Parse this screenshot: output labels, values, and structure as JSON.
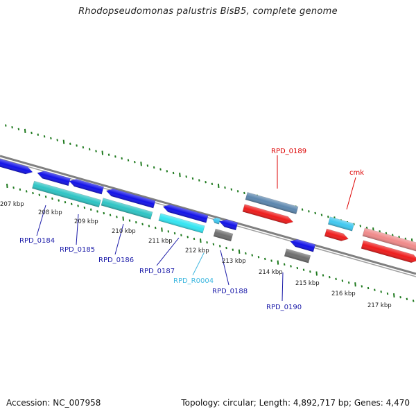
{
  "title": "Rhodopseudomonas palustris BisB5, complete genome",
  "footer": {
    "accession": "Accession: NC_007958",
    "topology": "Topology: circular; Length: 4,892,717 bp; Genes: 4,470"
  },
  "colors": {
    "backbone": "#808080",
    "tick": "#1f7a1f",
    "protein_blue": "#1212e8",
    "teal": "#2ec4c4",
    "cyan": "#33e5f2",
    "steel": "#5b86ae",
    "red": "#ee1c1c",
    "pink": "#f08a8a",
    "gray_gene": "#6e6e6e",
    "light_blue": "#3fc8f0"
  },
  "scale_labels": [
    "207 kbp",
    "208 kbp",
    "209 kbp",
    "210 kbp",
    "211 kbp",
    "212 kbp",
    "213 kbp",
    "214 kbp",
    "215 kbp",
    "216 kbp",
    "217 kbp"
  ],
  "gene_labels": [
    {
      "text": "RPD_0184",
      "color": "#1a1aa8"
    },
    {
      "text": "RPD_0185",
      "color": "#1a1aa8"
    },
    {
      "text": "RPD_0186",
      "color": "#1a1aa8"
    },
    {
      "text": "RPD_0187",
      "color": "#1a1aa8"
    },
    {
      "text": "RPD_R0004",
      "color": "#3fb8e0"
    },
    {
      "text": "RPD_0188",
      "color": "#1a1aa8"
    },
    {
      "text": "RPD_0190",
      "color": "#1a1aa8"
    },
    {
      "text": "RPD_0189",
      "color": "#dd0000"
    },
    {
      "text": "cmk",
      "color": "#dd0000"
    }
  ]
}
